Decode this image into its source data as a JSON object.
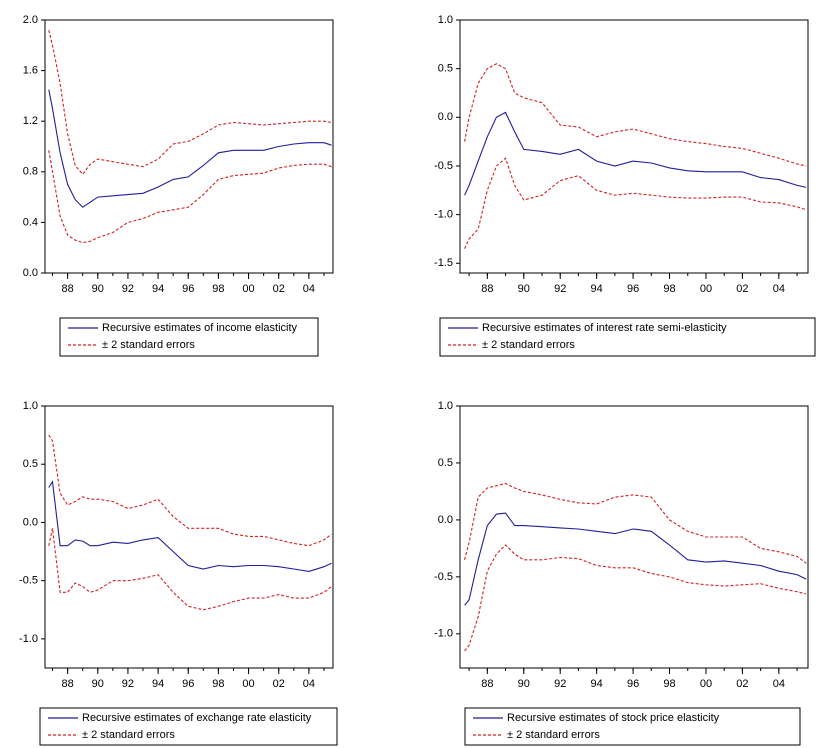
{
  "chart_data": [
    {
      "type": "line",
      "x": [
        1986.75,
        1987,
        1987.5,
        1988,
        1988.5,
        1989,
        1989.5,
        1990,
        1991,
        1992,
        1993,
        1994,
        1995,
        1996,
        1997,
        1998,
        1999,
        2000,
        2001,
        2002,
        2003,
        2004,
        2005,
        2005.5
      ],
      "xlim": [
        1986.5,
        2005.6
      ],
      "xticks": [
        {
          "value": 1988,
          "label": "88"
        },
        {
          "value": 1990,
          "label": "90"
        },
        {
          "value": 1992,
          "label": "92"
        },
        {
          "value": 1994,
          "label": "94"
        },
        {
          "value": 1996,
          "label": "96"
        },
        {
          "value": 1998,
          "label": "98"
        },
        {
          "value": 2000,
          "label": "00"
        },
        {
          "value": 2002,
          "label": "02"
        },
        {
          "value": 2004,
          "label": "04"
        }
      ],
      "ylim": [
        0,
        2
      ],
      "yticks": [
        {
          "value": 0,
          "label": "0.0"
        },
        0.4,
        0.8,
        1.2,
        1.6,
        {
          "value": 2,
          "label": "2.0"
        }
      ],
      "series": [
        {
          "name": "Recursive estimates of income elasticity",
          "color": "#1f1f9c",
          "values": [
            1.45,
            1.3,
            0.95,
            0.7,
            0.58,
            0.52,
            0.56,
            0.6,
            0.61,
            0.62,
            0.63,
            0.68,
            0.74,
            0.76,
            0.85,
            0.95,
            0.97,
            0.97,
            0.97,
            1.0,
            1.02,
            1.03,
            1.03,
            1.01
          ]
        },
        {
          "name": "± 2 standard errors",
          "color": "#d42020",
          "dashed": true,
          "upper": [
            1.92,
            1.8,
            1.5,
            1.1,
            0.85,
            0.78,
            0.86,
            0.9,
            0.88,
            0.86,
            0.84,
            0.9,
            1.02,
            1.04,
            1.1,
            1.17,
            1.19,
            1.18,
            1.17,
            1.18,
            1.19,
            1.2,
            1.2,
            1.19
          ],
          "lower": [
            0.97,
            0.8,
            0.45,
            0.3,
            0.26,
            0.24,
            0.25,
            0.28,
            0.32,
            0.4,
            0.43,
            0.48,
            0.5,
            0.52,
            0.62,
            0.74,
            0.77,
            0.78,
            0.79,
            0.83,
            0.85,
            0.86,
            0.86,
            0.84
          ]
        }
      ]
    },
    {
      "type": "line",
      "x": [
        1986.75,
        1987,
        1987.5,
        1988,
        1988.5,
        1989,
        1989.5,
        1990,
        1991,
        1992,
        1993,
        1994,
        1995,
        1996,
        1997,
        1998,
        1999,
        2000,
        2001,
        2002,
        2003,
        2004,
        2005,
        2005.5
      ],
      "xlim": [
        1986.5,
        2005.6
      ],
      "xticks": [
        {
          "value": 1988,
          "label": "88"
        },
        {
          "value": 1990,
          "label": "90"
        },
        {
          "value": 1992,
          "label": "92"
        },
        {
          "value": 1994,
          "label": "94"
        },
        {
          "value": 1996,
          "label": "96"
        },
        {
          "value": 1998,
          "label": "98"
        },
        {
          "value": 2000,
          "label": "00"
        },
        {
          "value": 2002,
          "label": "02"
        },
        {
          "value": 2004,
          "label": "04"
        }
      ],
      "ylim": [
        -1.6,
        1.0
      ],
      "yticks": [
        -1.5,
        {
          "value": -1,
          "label": "-1.0"
        },
        -0.5,
        {
          "value": 0,
          "label": "0.0"
        },
        0.5,
        {
          "value": 1,
          "label": "1.0"
        }
      ],
      "series": [
        {
          "name": "Recursive estimates of interest rate semi-elasticity",
          "color": "#1f1f9c",
          "values": [
            -0.8,
            -0.7,
            -0.45,
            -0.2,
            0.0,
            0.05,
            -0.15,
            -0.33,
            -0.35,
            -0.38,
            -0.33,
            -0.45,
            -0.5,
            -0.45,
            -0.47,
            -0.52,
            -0.55,
            -0.56,
            -0.56,
            -0.56,
            -0.62,
            -0.64,
            -0.7,
            -0.72
          ]
        },
        {
          "name": "± 2 standard errors",
          "color": "#d42020",
          "dashed": true,
          "upper": [
            -0.25,
            0.0,
            0.35,
            0.5,
            0.55,
            0.5,
            0.25,
            0.2,
            0.15,
            -0.08,
            -0.1,
            -0.2,
            -0.15,
            -0.12,
            -0.17,
            -0.22,
            -0.25,
            -0.27,
            -0.3,
            -0.32,
            -0.37,
            -0.42,
            -0.48,
            -0.5
          ],
          "lower": [
            -1.35,
            -1.25,
            -1.15,
            -0.75,
            -0.5,
            -0.42,
            -0.7,
            -0.85,
            -0.8,
            -0.65,
            -0.6,
            -0.75,
            -0.8,
            -0.78,
            -0.8,
            -0.82,
            -0.83,
            -0.83,
            -0.82,
            -0.82,
            -0.87,
            -0.88,
            -0.92,
            -0.95
          ]
        }
      ]
    },
    {
      "type": "line",
      "x": [
        1986.75,
        1987,
        1987.5,
        1988,
        1988.5,
        1989,
        1989.5,
        1990,
        1991,
        1992,
        1993,
        1994,
        1995,
        1996,
        1997,
        1998,
        1999,
        2000,
        2001,
        2002,
        2003,
        2004,
        2005,
        2005.5
      ],
      "xlim": [
        1986.5,
        2005.6
      ],
      "xticks": [
        {
          "value": 1988,
          "label": "88"
        },
        {
          "value": 1990,
          "label": "90"
        },
        {
          "value": 1992,
          "label": "92"
        },
        {
          "value": 1994,
          "label": "94"
        },
        {
          "value": 1996,
          "label": "96"
        },
        {
          "value": 1998,
          "label": "98"
        },
        {
          "value": 2000,
          "label": "00"
        },
        {
          "value": 2002,
          "label": "02"
        },
        {
          "value": 2004,
          "label": "04"
        }
      ],
      "ylim": [
        -1.25,
        1.0
      ],
      "yticks": [
        {
          "value": -1,
          "label": "-1.0"
        },
        -0.5,
        {
          "value": 0,
          "label": "0.0"
        },
        0.5,
        {
          "value": 1,
          "label": "1.0"
        }
      ],
      "series": [
        {
          "name": "Recursive estimates of exchange rate elasticity",
          "color": "#1f1f9c",
          "values": [
            0.3,
            0.35,
            -0.2,
            -0.2,
            -0.15,
            -0.16,
            -0.2,
            -0.2,
            -0.17,
            -0.18,
            -0.15,
            -0.13,
            -0.25,
            -0.37,
            -0.4,
            -0.37,
            -0.38,
            -0.37,
            -0.37,
            -0.38,
            -0.4,
            -0.42,
            -0.38,
            -0.35
          ]
        },
        {
          "name": "± 2 standard errors",
          "color": "#d42020",
          "dashed": true,
          "upper": [
            0.75,
            0.7,
            0.25,
            0.15,
            0.18,
            0.22,
            0.2,
            0.2,
            0.18,
            0.12,
            0.15,
            0.2,
            0.05,
            -0.05,
            -0.05,
            -0.05,
            -0.1,
            -0.12,
            -0.12,
            -0.15,
            -0.18,
            -0.2,
            -0.15,
            -0.1
          ],
          "lower": [
            -0.2,
            -0.05,
            -0.6,
            -0.6,
            -0.52,
            -0.55,
            -0.6,
            -0.58,
            -0.5,
            -0.5,
            -0.48,
            -0.45,
            -0.6,
            -0.72,
            -0.75,
            -0.72,
            -0.68,
            -0.65,
            -0.65,
            -0.62,
            -0.65,
            -0.65,
            -0.6,
            -0.55
          ]
        }
      ]
    },
    {
      "type": "line",
      "x": [
        1986.75,
        1987,
        1987.5,
        1988,
        1988.5,
        1989,
        1989.5,
        1990,
        1991,
        1992,
        1993,
        1994,
        1995,
        1996,
        1997,
        1998,
        1999,
        2000,
        2001,
        2002,
        2003,
        2004,
        2005,
        2005.5
      ],
      "xlim": [
        1986.5,
        2005.6
      ],
      "xticks": [
        {
          "value": 1988,
          "label": "88"
        },
        {
          "value": 1990,
          "label": "90"
        },
        {
          "value": 1992,
          "label": "92"
        },
        {
          "value": 1994,
          "label": "94"
        },
        {
          "value": 1996,
          "label": "96"
        },
        {
          "value": 1998,
          "label": "98"
        },
        {
          "value": 2000,
          "label": "00"
        },
        {
          "value": 2002,
          "label": "02"
        },
        {
          "value": 2004,
          "label": "04"
        }
      ],
      "ylim": [
        -1.3,
        1.0
      ],
      "yticks": [
        {
          "value": -1,
          "label": "-1.0"
        },
        -0.5,
        {
          "value": 0,
          "label": "0.0"
        },
        0.5,
        {
          "value": 1,
          "label": "1.0"
        }
      ],
      "series": [
        {
          "name": "Recursive estimates of stock price elasticity",
          "color": "#1f1f9c",
          "values": [
            -0.75,
            -0.7,
            -0.35,
            -0.05,
            0.05,
            0.06,
            -0.05,
            -0.05,
            -0.06,
            -0.07,
            -0.08,
            -0.1,
            -0.12,
            -0.08,
            -0.1,
            -0.22,
            -0.35,
            -0.37,
            -0.36,
            -0.38,
            -0.4,
            -0.45,
            -0.48,
            -0.52
          ]
        },
        {
          "name": "± 2 standard errors",
          "color": "#d42020",
          "dashed": true,
          "upper": [
            -0.35,
            -0.2,
            0.2,
            0.28,
            0.3,
            0.32,
            0.28,
            0.25,
            0.22,
            0.18,
            0.15,
            0.14,
            0.2,
            0.22,
            0.2,
            0.0,
            -0.1,
            -0.15,
            -0.15,
            -0.15,
            -0.25,
            -0.28,
            -0.32,
            -0.38
          ],
          "lower": [
            -1.15,
            -1.1,
            -0.85,
            -0.45,
            -0.3,
            -0.22,
            -0.3,
            -0.35,
            -0.35,
            -0.33,
            -0.34,
            -0.4,
            -0.42,
            -0.42,
            -0.47,
            -0.5,
            -0.55,
            -0.57,
            -0.58,
            -0.57,
            -0.56,
            -0.6,
            -0.63,
            -0.65
          ]
        }
      ]
    }
  ]
}
